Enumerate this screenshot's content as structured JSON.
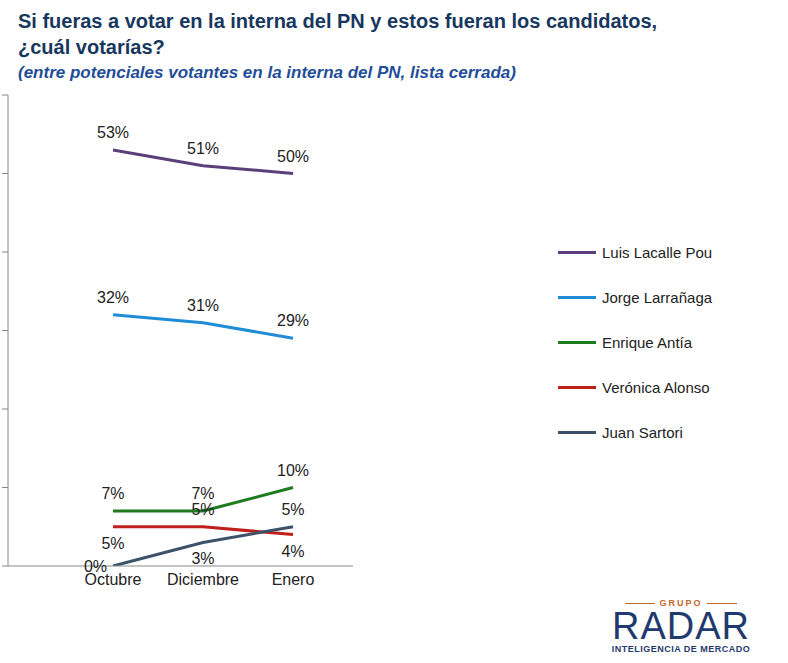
{
  "chart_data": {
    "type": "line",
    "title": "Si fueras a votar en la interna del PN y estos fueran los candidatos, ¿cuál votarías?",
    "subtitle": "(entre potenciales votantes en la interna del PN, lista cerrada)",
    "categories": [
      "Octubre",
      "Diciembre",
      "Enero"
    ],
    "series": [
      {
        "name": "Luis Lacalle Pou",
        "color": "#5b3f7a",
        "values": [
          53,
          51,
          50
        ],
        "value_labels": [
          "53%",
          "51%",
          "50%"
        ]
      },
      {
        "name": "Jorge Larrañaga",
        "color": "#1f8dd6",
        "values": [
          32,
          31,
          29
        ],
        "value_labels": [
          "32%",
          "31%",
          "29%"
        ]
      },
      {
        "name": "Enrique Antía",
        "color": "#1e7b1e",
        "values": [
          7,
          7,
          10
        ],
        "value_labels": [
          "7%",
          "7%",
          "10%"
        ]
      },
      {
        "name": "Verónica Alonso",
        "color": "#c0201c",
        "values": [
          5,
          5,
          4
        ],
        "value_labels": [
          "5%",
          "5%",
          "4%"
        ]
      },
      {
        "name": "Juan Sartori",
        "color": "#3c5269",
        "values": [
          0,
          3,
          5
        ],
        "value_labels": [
          "0%",
          "3%",
          "5%"
        ]
      }
    ],
    "ylim": [
      0,
      60
    ],
    "yticks": [
      0,
      10,
      20,
      30,
      40,
      50,
      60
    ],
    "grid": false,
    "legend": "right",
    "data_labels": true,
    "tick_labels": "x",
    "annotations": [
      "GRUPO",
      "RADAR",
      "INTELIGENCIA DE MERCADO"
    ]
  }
}
